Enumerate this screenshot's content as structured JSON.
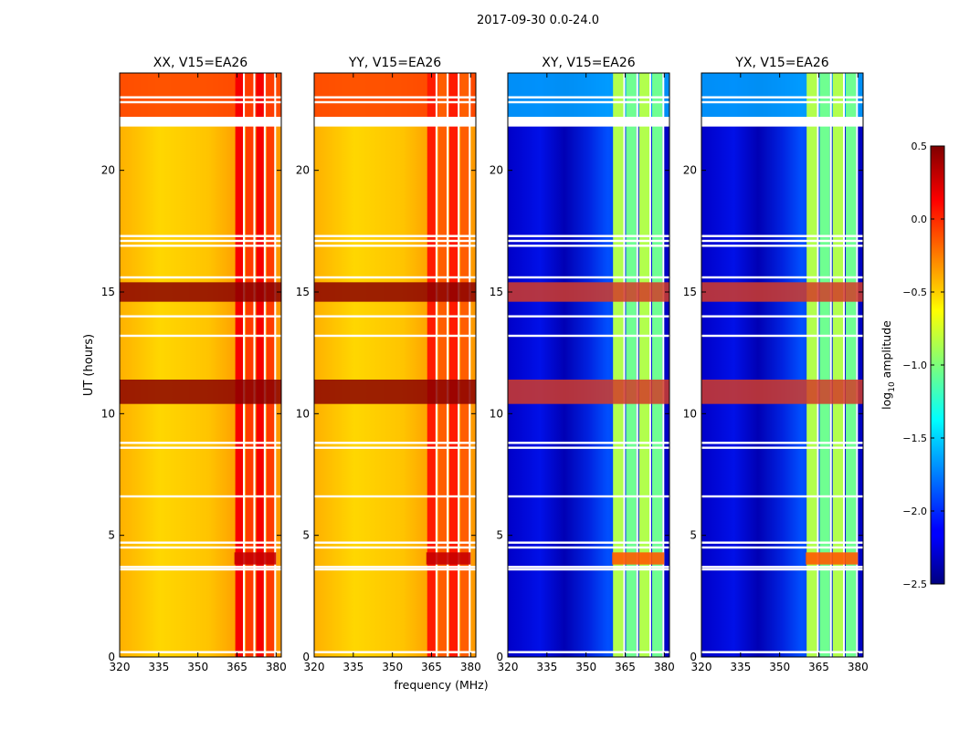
{
  "figure": {
    "suptitle": "2017-09-30 0.0-24.0",
    "ylabel": "UT (hours)",
    "xlabel": "frequency (MHz)"
  },
  "chart_data": [
    {
      "type": "heatmap",
      "title": "XX, V15=EA26",
      "xlim": [
        320,
        382
      ],
      "ylim": [
        0,
        24
      ],
      "xticks": [
        320,
        335,
        350,
        365,
        380
      ],
      "yticks": [
        0,
        5,
        10,
        15,
        20
      ],
      "kind": "parallel",
      "bright_band_mhz": [
        364,
        380
      ],
      "base_log_amp": -0.45,
      "band_log_amp": 0.1
    },
    {
      "type": "heatmap",
      "title": "YY, V15=EA26",
      "xlim": [
        320,
        382
      ],
      "ylim": [
        0,
        24
      ],
      "xticks": [
        320,
        335,
        350,
        365,
        380
      ],
      "yticks": [
        0,
        5,
        10,
        15,
        20
      ],
      "kind": "parallel",
      "bright_band_mhz": [
        363,
        380
      ],
      "base_log_amp": -0.5,
      "band_log_amp": 0.0
    },
    {
      "type": "heatmap",
      "title": "XY, V15=EA26",
      "xlim": [
        320,
        382
      ],
      "ylim": [
        0,
        24
      ],
      "xticks": [
        320,
        335,
        350,
        365,
        380
      ],
      "yticks": [
        0,
        5,
        10,
        15,
        20
      ],
      "kind": "cross",
      "bright_band_mhz": [
        360,
        380
      ],
      "base_log_amp": -2.2,
      "band_log_amp": -0.9
    },
    {
      "type": "heatmap",
      "title": "YX, V15=EA26",
      "xlim": [
        320,
        382
      ],
      "ylim": [
        0,
        24
      ],
      "xticks": [
        320,
        335,
        350,
        365,
        380
      ],
      "yticks": [
        0,
        5,
        10,
        15,
        20
      ],
      "kind": "cross",
      "bright_band_mhz": [
        360,
        380
      ],
      "base_log_amp": -2.2,
      "band_log_amp": -0.9
    }
  ],
  "colorbar": {
    "label": "log",
    "label_sub": "10",
    "label_rest": " amplitude",
    "range": [
      -2.5,
      0.5
    ],
    "ticks": [
      "0.5",
      "0.0",
      "−0.5",
      "−1.0",
      "−1.5",
      "−2.0",
      "−2.5"
    ],
    "tick_values": [
      0.5,
      0.0,
      -0.5,
      -1.0,
      -1.5,
      -2.0,
      -2.5
    ],
    "colormap": "jet"
  },
  "flagged_gaps_hours": [
    0.2,
    3.6,
    3.7,
    4.5,
    4.7,
    6.6,
    8.6,
    8.8,
    13.2,
    14.0,
    15.6,
    16.9,
    17.1,
    17.3,
    21.9,
    22.0,
    22.8,
    23.0
  ]
}
